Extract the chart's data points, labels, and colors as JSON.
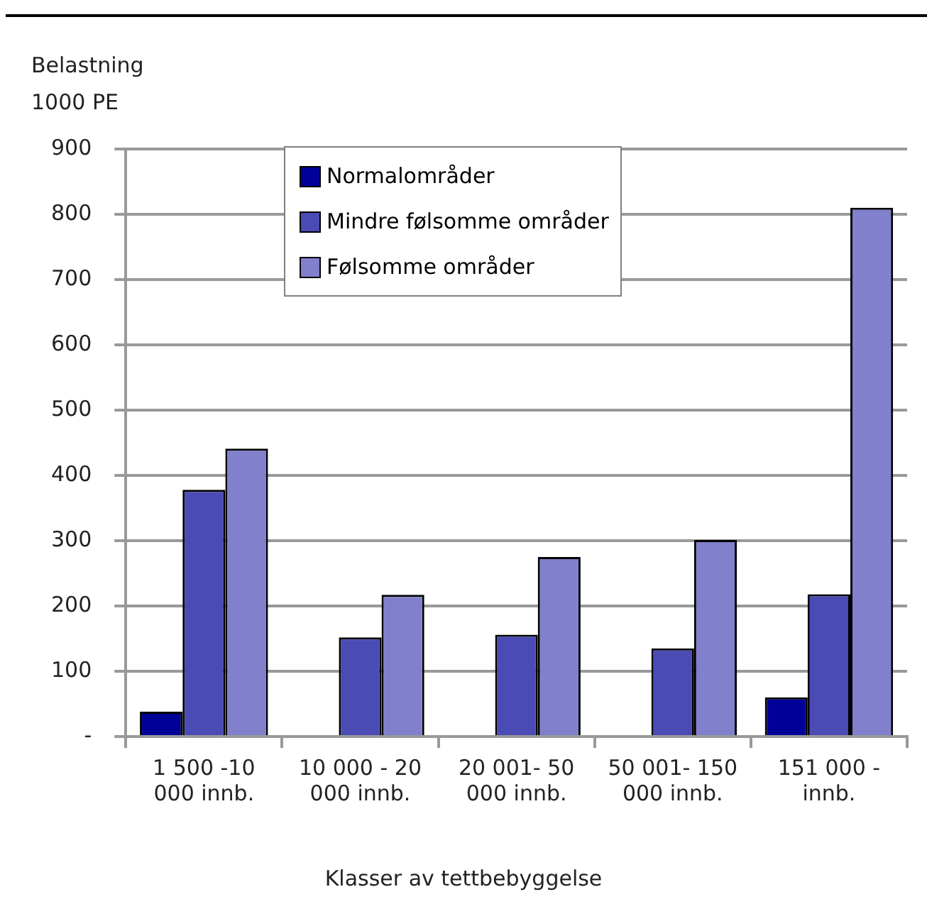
{
  "chart_data": {
    "type": "bar",
    "ylabel": "Belastning\n1000 PE",
    "xlabel": "Klasser av tettbebyggelse",
    "categories": [
      "1 500 -10 000 innb.",
      "10 000 - 20 000 innb.",
      "20 001- 50 000 innb.",
      "50 001- 150 000 innb.",
      "151 000 - innb."
    ],
    "series": [
      {
        "name": "Normalområder",
        "color": "#000099",
        "values": [
          38,
          null,
          null,
          null,
          60
        ]
      },
      {
        "name": "Mindre følsomme områder",
        "color": "#4b4bb5",
        "values": [
          378,
          152,
          156,
          135,
          218
        ]
      },
      {
        "name": "Følsomme områder",
        "color": "#8080cc",
        "values": [
          441,
          217,
          275,
          301,
          810
        ]
      }
    ],
    "ylim": [
      0,
      900
    ],
    "yticks": [
      {
        "value": 0,
        "label": "-"
      },
      100,
      200,
      300,
      400,
      500,
      600,
      700,
      800,
      900
    ],
    "grid": "y",
    "legend": "top"
  }
}
